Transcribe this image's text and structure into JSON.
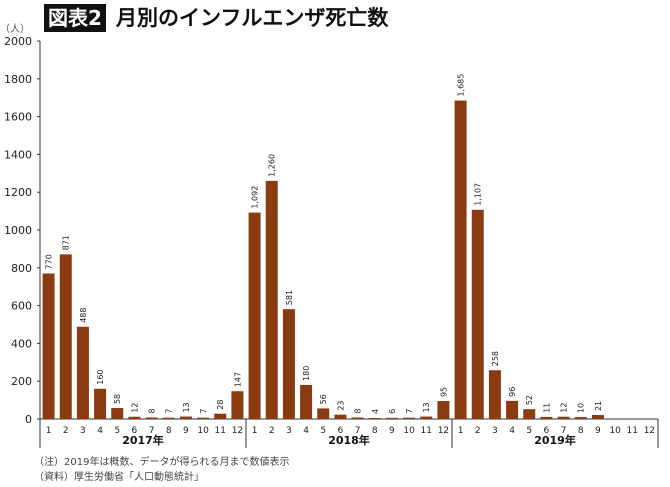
{
  "chart_data": {
    "type": "bar",
    "title_tag": "図表2",
    "title": "月別のインフルエンザ死亡数",
    "ylabel": "（人）",
    "ylim": [
      0,
      2000
    ],
    "yticks": [
      0,
      200,
      400,
      600,
      800,
      1000,
      1200,
      1400,
      1600,
      1800,
      2000
    ],
    "months": [
      "1",
      "2",
      "3",
      "4",
      "5",
      "6",
      "7",
      "8",
      "9",
      "10",
      "11",
      "12"
    ],
    "series": [
      {
        "year": "2017年",
        "values": [
          770,
          871,
          488,
          160,
          58,
          12,
          8,
          7,
          13,
          7,
          28,
          147
        ],
        "labels": [
          "770",
          "871",
          "488",
          "160",
          "58",
          "12",
          "8",
          "7",
          "13",
          "7",
          "28",
          "147"
        ]
      },
      {
        "year": "2018年",
        "values": [
          1092,
          1260,
          581,
          180,
          56,
          23,
          8,
          4,
          6,
          7,
          13,
          95
        ],
        "labels": [
          "1,092",
          "1,260",
          "581",
          "180",
          "56",
          "23",
          "8",
          "4",
          "6",
          "7",
          "13",
          "95"
        ]
      },
      {
        "year": "2019年",
        "values": [
          1685,
          1107,
          258,
          96,
          52,
          11,
          12,
          10,
          21,
          null,
          null,
          null
        ],
        "labels": [
          "1,685",
          "1,107",
          "258",
          "96",
          "52",
          "11",
          "12",
          "10",
          "21",
          "",
          "",
          ""
        ]
      }
    ],
    "bar_color": "#8a3b12",
    "notes": [
      "（注）2019年は概数、データが得られる月まで数値表示",
      "（資料）厚生労働省「人口動態統計」"
    ]
  }
}
